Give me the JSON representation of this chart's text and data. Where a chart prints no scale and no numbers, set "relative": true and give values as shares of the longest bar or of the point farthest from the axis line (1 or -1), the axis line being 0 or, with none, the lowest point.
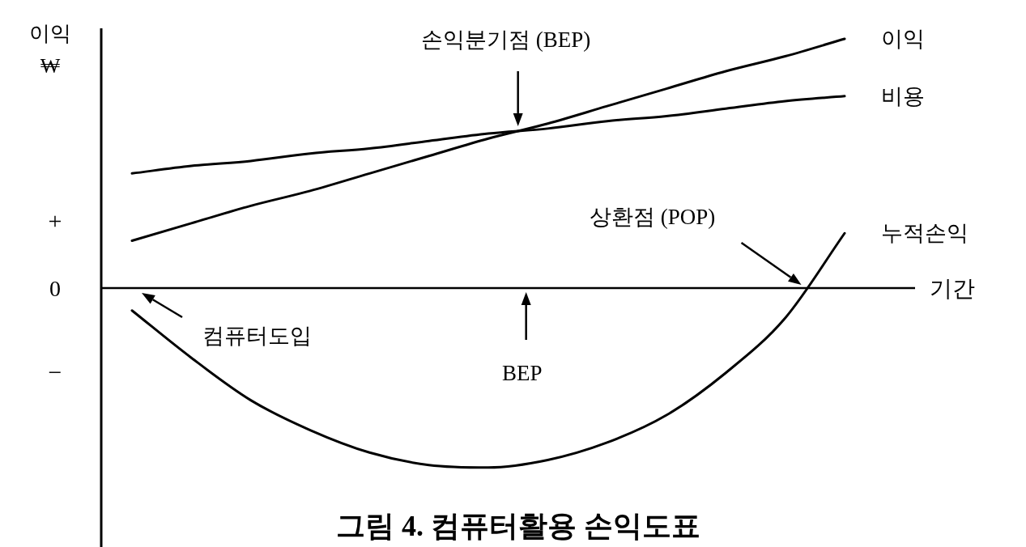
{
  "chart_data": {
    "type": "line",
    "relative": true,
    "title": "그림 4. 컴퓨터활용 손익도표",
    "ylabel": "이익\n₩",
    "xlabel": "기간",
    "categories": [
      null,
      null,
      null,
      null,
      null,
      null,
      null,
      null,
      null,
      null,
      null,
      null,
      null
    ],
    "series": [
      {
        "name": "이익",
        "color": "#000000",
        "values": [
          0.19,
          0.26,
          0.33,
          0.39,
          0.46,
          0.53,
          0.6,
          0.66,
          0.73,
          0.8,
          0.87,
          0.93,
          1.0
        ]
      },
      {
        "name": "비용",
        "color": "#000000",
        "values": [
          0.46,
          0.49,
          0.51,
          0.54,
          0.56,
          0.59,
          0.62,
          0.64,
          0.67,
          0.69,
          0.72,
          0.75,
          0.77
        ]
      },
      {
        "name": "누적손익",
        "color": "#000000",
        "values": [
          -0.09,
          -0.28,
          -0.45,
          -0.57,
          -0.66,
          -0.71,
          -0.72,
          -0.69,
          -0.62,
          -0.51,
          -0.34,
          -0.12,
          0.22
        ]
      }
    ],
    "annotations": [
      "손익분기점 (BEP)",
      "BEP",
      "상환점 (POP)",
      "컴퓨터도입",
      "+",
      "0",
      "−"
    ]
  }
}
